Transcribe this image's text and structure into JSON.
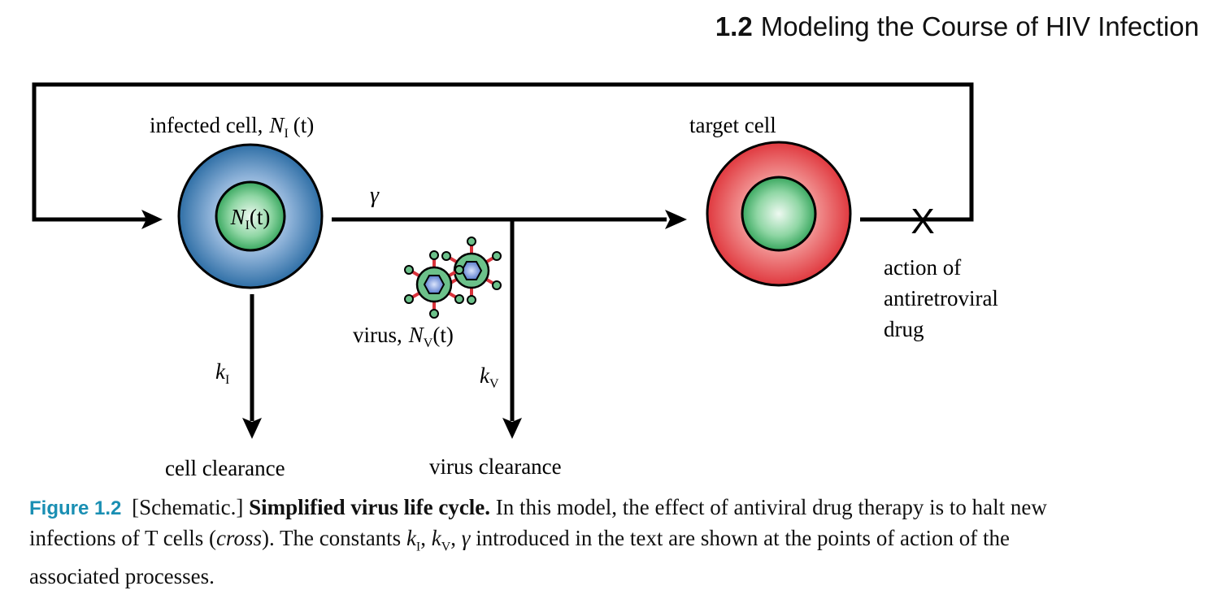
{
  "header": {
    "section_number": "1.2",
    "section_title": "Modeling the Course of HIV Infection"
  },
  "diagram": {
    "infected_cell_label": "infected cell,",
    "infected_cell_symbol": "N",
    "infected_cell_subscript": "I",
    "infected_cell_arg": "(t)",
    "infected_core_symbol": "N",
    "infected_core_subscript": "I",
    "infected_core_arg": "(t)",
    "target_cell_label": "target cell",
    "gamma_label": "γ",
    "virus_label": "virus,",
    "virus_symbol": "N",
    "virus_subscript": "V",
    "virus_arg": "(t)",
    "k_i_symbol": "k",
    "k_i_subscript": "I",
    "k_v_symbol": "k",
    "k_v_subscript": "V",
    "cell_clearance_label": "cell clearance",
    "virus_clearance_label": "virus clearance",
    "drug_label_line1": "action of",
    "drug_label_line2": "antiretroviral",
    "drug_label_line3": "drug",
    "cross_mark": "X",
    "colors": {
      "infected_outer": "#2f6fa6",
      "infected_inner": "#3aa860",
      "target_outer": "#e0393f",
      "target_inner": "#3aa860",
      "virus_spike": "#d9343c",
      "virus_knob": "#6cc18a",
      "virus_core": "#5b7ecf"
    }
  },
  "caption": {
    "figure_label": "Figure 1.2",
    "type_tag": "[Schematic.]",
    "title": "Simplified virus life cycle.",
    "text_part1": "In this model, the effect of antiviral drug therapy is to halt new infections of T cells (",
    "text_cross": "cross",
    "text_part2": "). The constants ",
    "k1": "k",
    "k1_sub": "I",
    "sep1": ", ",
    "k2": "k",
    "k2_sub": "V",
    "sep2": ", ",
    "gamma": "γ",
    "text_part3": " introduced in the text are shown at the points of action of the associated processes."
  }
}
